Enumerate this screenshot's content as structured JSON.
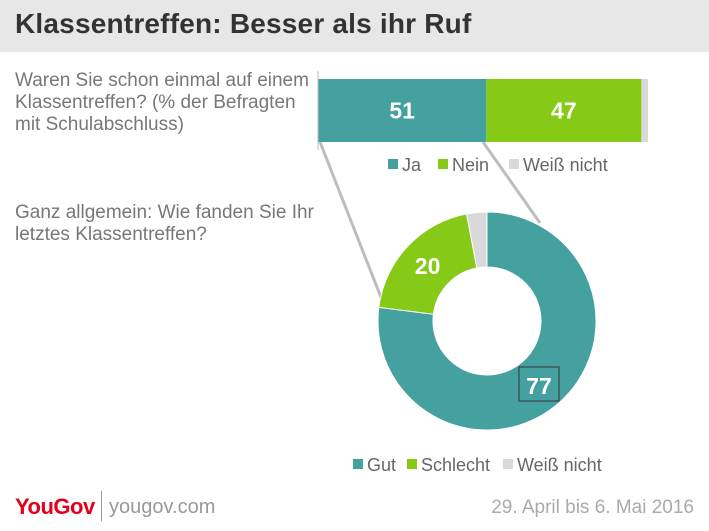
{
  "title": "Klassentreffen:  Besser als ihr Ruf",
  "chart_data": [
    {
      "type": "bar",
      "title": "Waren Sie schon einmal auf einem Klassentreffen? (% der Befragten mit Schulabschluss)",
      "stacked": true,
      "orientation": "horizontal",
      "series": [
        {
          "name": "Ja",
          "values": [
            51
          ],
          "color": "#45a0a0",
          "label": "51"
        },
        {
          "name": "Nein",
          "values": [
            47
          ],
          "color": "#87c917",
          "label": "47"
        },
        {
          "name": "Weiß nicht",
          "values": [
            2
          ],
          "color": "#d9d9d9",
          "label": ""
        }
      ]
    },
    {
      "type": "pie",
      "donut": true,
      "title": "Ganz allgemein: Wie fanden Sie Ihr letztes Klassentreffen?",
      "slices": [
        {
          "name": "Gut",
          "value": 77,
          "color": "#45a0a0",
          "label": "77"
        },
        {
          "name": "Schlecht",
          "value": 20,
          "color": "#87c917",
          "label": "20"
        },
        {
          "name": "Weiß nicht",
          "value": 3,
          "color": "#d9d9d9",
          "label": ""
        }
      ]
    }
  ],
  "footer": {
    "logo": "YouGov",
    "url": "yougov.com",
    "date": "29. April bis 6. Mai 2016"
  }
}
